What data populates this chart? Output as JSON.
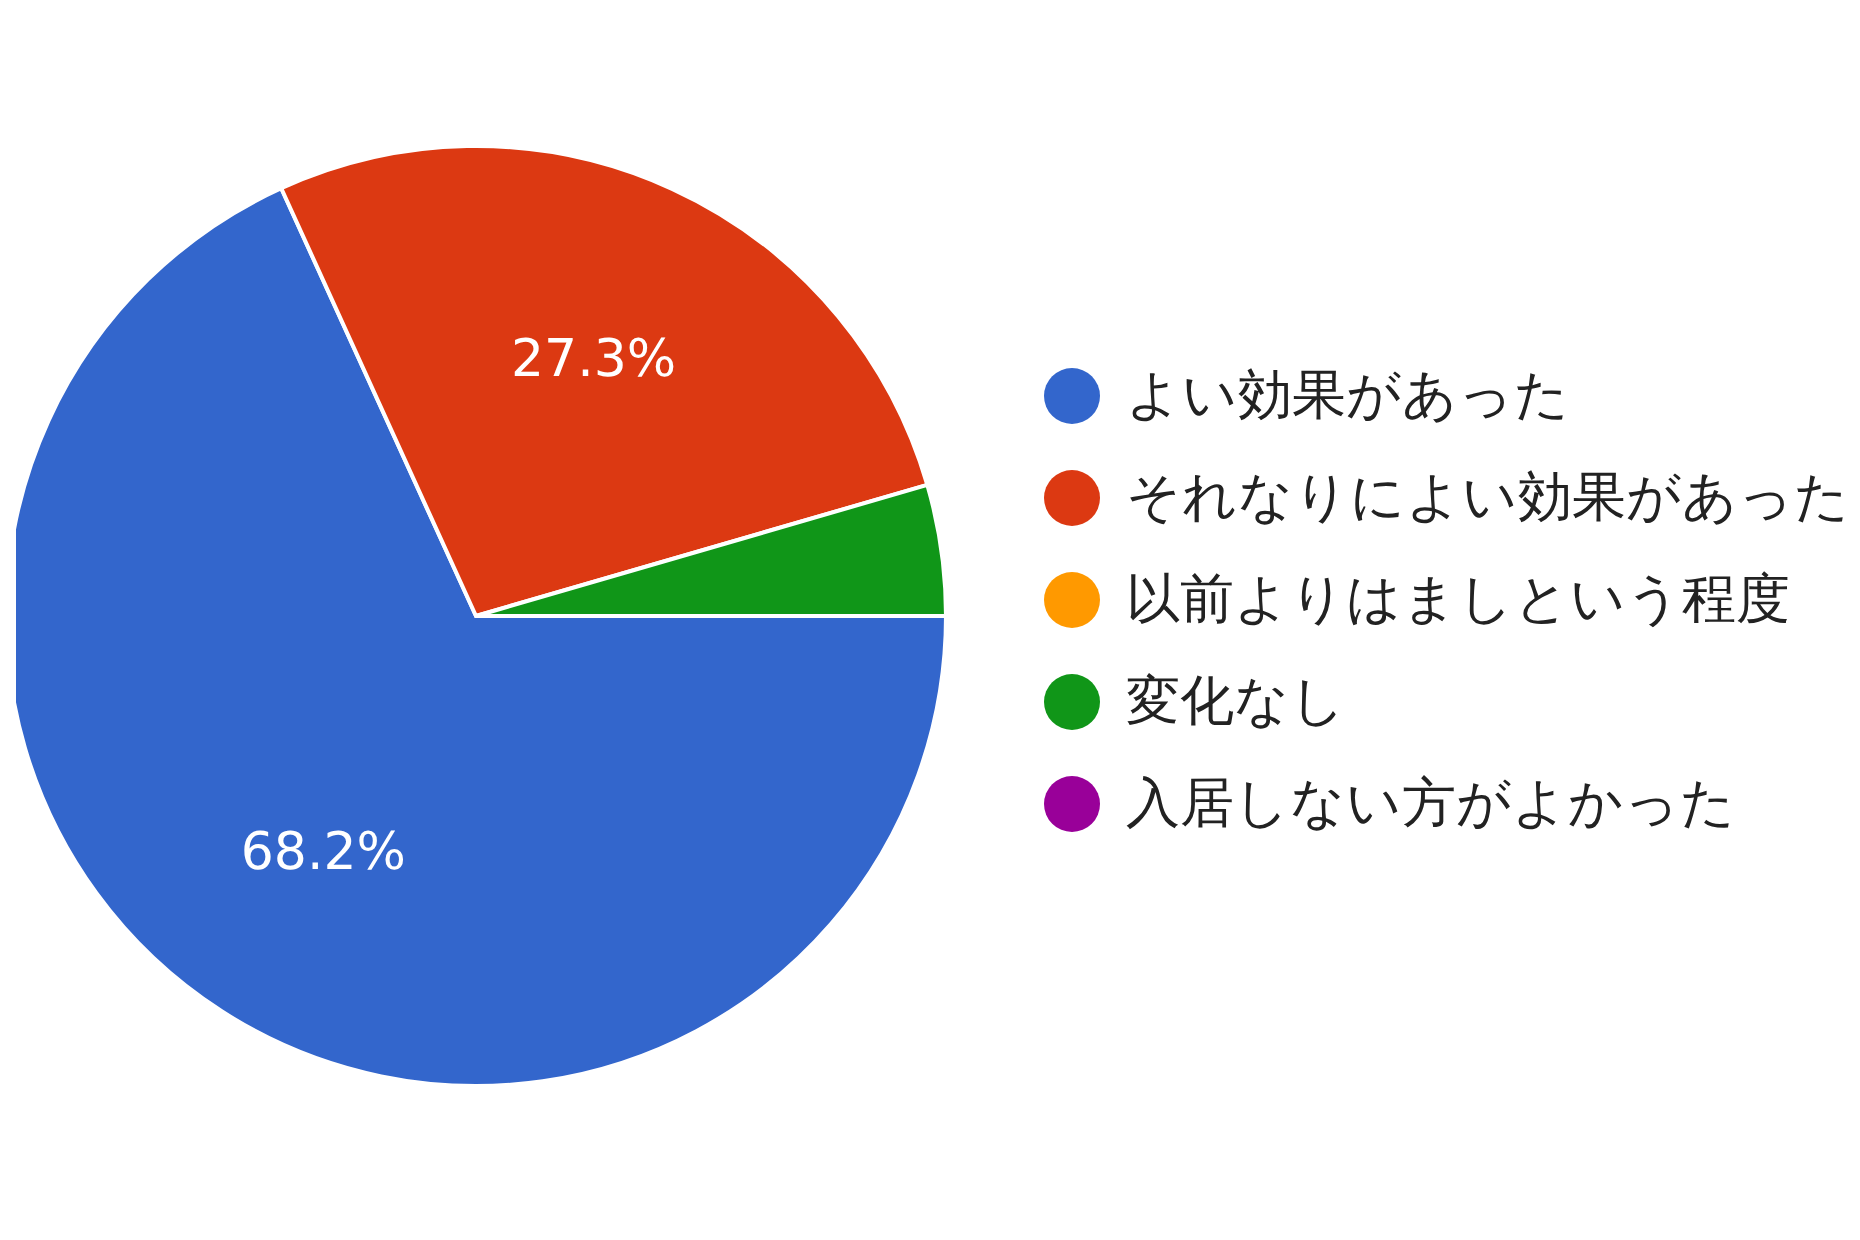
{
  "chart_data": {
    "type": "pie",
    "categories": [
      "よい効果があった",
      "それなりによい効果があった",
      "以前よりはましという程度",
      "変化なし",
      "入居しない方がよかった"
    ],
    "values": [
      68.2,
      27.3,
      0,
      4.5,
      0
    ],
    "colors": [
      "#3366cc",
      "#dc3912",
      "#ff9900",
      "#109618",
      "#990099"
    ],
    "value_labels": [
      "68.2%",
      "27.3%",
      null,
      null,
      null
    ],
    "legend": "right"
  }
}
